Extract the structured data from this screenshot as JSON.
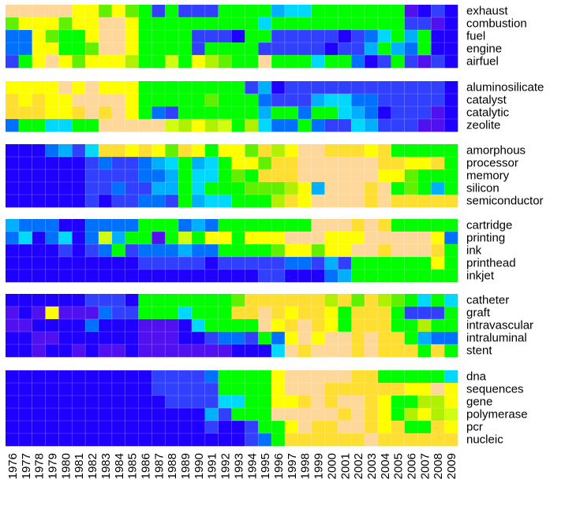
{
  "chart_data": {
    "type": "heatmap",
    "years": [
      "1976",
      "1977",
      "1978",
      "1979",
      "1980",
      "1981",
      "1982",
      "1983",
      "1984",
      "1985",
      "1986",
      "1987",
      "1988",
      "1989",
      "1990",
      "1991",
      "1992",
      "1993",
      "1994",
      "1995",
      "1996",
      "1997",
      "1998",
      "1999",
      "2000",
      "2001",
      "2002",
      "2003",
      "2004",
      "2005",
      "2006",
      "2007",
      "2008",
      "2009"
    ],
    "palette": {
      "Y": "#fefe00",
      "y": "#fede30",
      "P": "#fed89a",
      "G": "#00fe00",
      "g": "#60f000",
      "a": "#b0f000",
      "L": "#d0fe10",
      "b": "#3040fe",
      "B": "#1f00fe",
      "V": "#5010f0",
      "v": "#3820f0",
      "m": "#0070fe",
      "c": "#00b0fe",
      "C": "#00d8fe",
      "t": "#00a0d0"
    },
    "groups": [
      {
        "rows": [
          {
            "label": "exhaust",
            "cells": "PPPPPYYgYgGbGbbbGGGGcCCGGGGGGGVBbB"
          },
          {
            "label": "combustion",
            "cells": "gYYYgYYPPYGGGGGGGGGCGGGGGGGGGGbbVB"
          },
          {
            "label": "fuel",
            "cells": "mmYgGGYPPYGGGGbbbBGGbbbbbBbmCGcGBB"
          },
          {
            "label": "engine",
            "cells": "mmYYGGgPPYGGGGbGGGGbbbbbBbbcGcmGBB"
          },
          {
            "label": "airfuel",
            "cells": "bGYPYgYYYaGGLGYagGGPGGGCGGmBbGbVbB"
          }
        ]
      },
      {
        "rows": [
          {
            "label": "aluminosilicate",
            "cells": "YYYYPYPYYYGGGGGGGGbcBbbbbbbbbbbbbB"
          },
          {
            "label": "catalyst",
            "cells": "yYyYYPPPPYGGGGGgGGGmbbbcCCmmbbbbbB"
          },
          {
            "label": "catalytic",
            "cells": "yyyYYyPyPYGmbGGGGGGcGGmGGCcmBbbbVB"
          },
          {
            "label": "zeolite",
            "cells": "mGGCCGGPPPPPLaYaLGaCmmGmbbCcbbbVVB"
          }
        ]
      },
      {
        "rows": [
          {
            "label": "amorphous",
            "cells": "BBBmcbCyyYyYgyYGYYgyaYPPyyyYyGGGGG"
          },
          {
            "label": "processor",
            "cells": "BBBBBBbmbbmcCGcCGYYgyyPPPPPPyyYYyG"
          },
          {
            "label": "memory",
            "cells": "BBBBBBbbbbmmcGCCGgGyyyPPPPPPYYgGGG"
          },
          {
            "label": "silicon",
            "cells": "BBBBBBbbmbbccGCGGGgggaYcPPPyPGgGcG"
          },
          {
            "label": "semiconductor",
            "cells": "BBBBBBbBbbmmbGcCCGGGayYPPPPyPyyyyy"
          }
        ]
      },
      {
        "rows": [
          {
            "label": "cartridge",
            "cells": "cmmmBBmmmmGGGmcmGGGGGGGPPPyPyGGGGG"
          },
          {
            "label": "printing",
            "cells": "mCBmCBmLcGGVGLGYYGYYYPPPYYYPPPPPYm"
          },
          {
            "label": "ink",
            "cells": "BBBBbBbmGbmmmcmmGGGGgYYgYYPPyPPPyG"
          },
          {
            "label": "printhead",
            "cells": "BBBBBBBBBBbbbbbBbbbbbmmbcbGGGGGGYG"
          },
          {
            "label": "inkjet",
            "cells": "BBBBBBBBBBBBBBBBBBBbbBBBmcGGGGGGGG"
          }
        ]
      },
      {
        "rows": [
          {
            "label": "catheter",
            "cells": "BBBBBBbbbBGGGGGGGgyyyyyyaygyagGCGC"
          },
          {
            "label": "graft",
            "cells": "VBVYVVVmbbGGGCGGGyyPyYyyYGyyyGbbbG"
          },
          {
            "label": "intravascular",
            "cells": "VVBBBBmBBBVVVBCGGGGPYyPyYGyyyGGaGG"
          },
          {
            "label": "intraluminal",
            "cells": "BBVVBBBBBBVVVBBbmmbGmYPYPPyPyyGcmm"
          },
          {
            "label": "stent",
            "cells": "BBVBBVBVVBVVVVVVVBBBCPyPPPyPyyyGyG"
          }
        ]
      },
      {
        "rows": [
          {
            "label": "dna",
            "cells": "BBBBBBBBBBBbbbbmGGGGYPPPPPyyGGGGGC"
          },
          {
            "label": "sequences",
            "cells": "BBBBBBBBBBBbbbbbGGGGYPPPyyyyyyYYPY"
          },
          {
            "label": "gene",
            "cells": "BBBBBBBBBBBBbbbbCCGGYYyPyPPyYGGaaY"
          },
          {
            "label": "polymerase",
            "cells": "BBBBBBBBBBBBBBBcbGGGPPPPPyPyYGaYaL"
          },
          {
            "label": "pcr",
            "cells": "BBBBBBBBBBBBBBBbBBbGGYPyyPPyYyGGyY"
          },
          {
            "label": "nucleic",
            "cells": "BBBBBBBBBBBBBBBBBBbmGyyyyyyPyyyyyy"
          }
        ]
      }
    ]
  }
}
